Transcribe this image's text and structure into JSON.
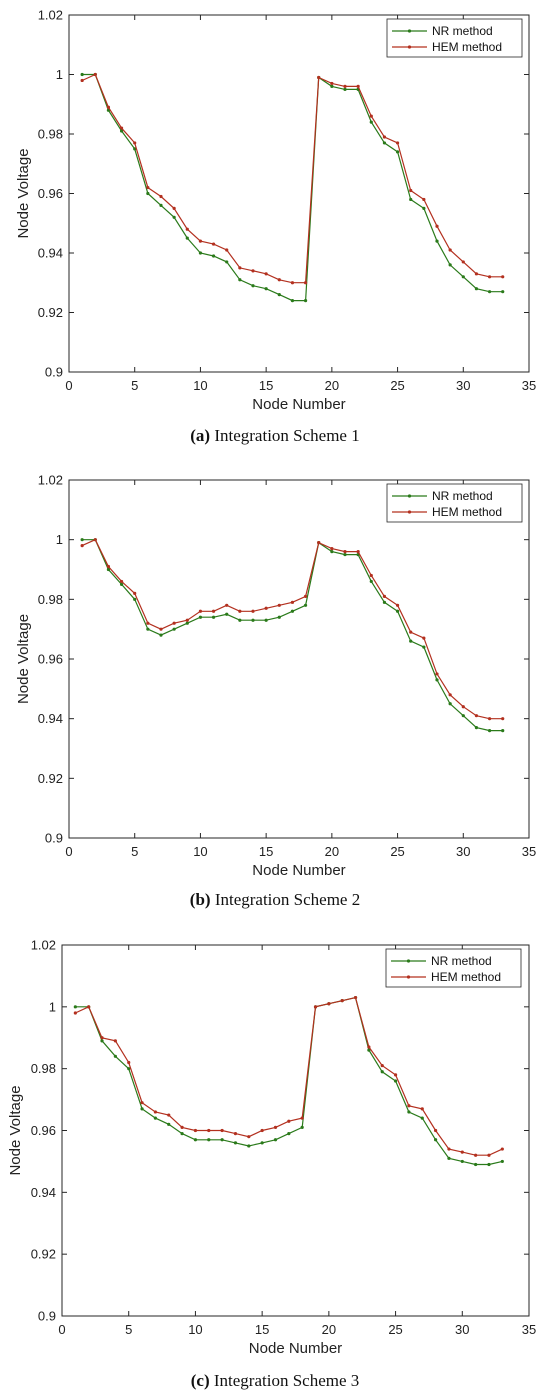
{
  "chart_data": [
    {
      "type": "line",
      "xlabel": "Node Number",
      "ylabel": "Node Voltage",
      "xlim": [
        0,
        35
      ],
      "ylim": [
        0.9,
        1.02
      ],
      "xticks": [
        "0",
        "5",
        "10",
        "15",
        "20",
        "25",
        "30",
        "35"
      ],
      "yticks": [
        "0.9",
        "0.92",
        "0.94",
        "0.96",
        "0.98",
        "1",
        "1.02"
      ],
      "legend_position": "top-right",
      "caption_label": "(a)",
      "caption_text": "Integration Scheme 1",
      "x": [
        1,
        2,
        3,
        4,
        5,
        6,
        7,
        8,
        9,
        10,
        11,
        12,
        13,
        14,
        15,
        16,
        17,
        18,
        19,
        20,
        21,
        22,
        23,
        24,
        25,
        26,
        27,
        28,
        29,
        30,
        31,
        32,
        33
      ],
      "series": [
        {
          "name": "NR method",
          "color": "#2a7a1a",
          "values": [
            1.0,
            1.0,
            0.988,
            0.981,
            0.975,
            0.96,
            0.956,
            0.952,
            0.945,
            0.94,
            0.939,
            0.937,
            0.931,
            0.929,
            0.928,
            0.926,
            0.924,
            0.924,
            0.999,
            0.996,
            0.995,
            0.995,
            0.984,
            0.977,
            0.974,
            0.958,
            0.955,
            0.944,
            0.936,
            0.932,
            0.928,
            0.927,
            0.927
          ]
        },
        {
          "name": "HEM method",
          "color": "#b3301f",
          "values": [
            0.998,
            1.0,
            0.989,
            0.982,
            0.977,
            0.962,
            0.959,
            0.955,
            0.948,
            0.944,
            0.943,
            0.941,
            0.935,
            0.934,
            0.933,
            0.931,
            0.93,
            0.93,
            0.999,
            0.997,
            0.996,
            0.996,
            0.986,
            0.979,
            0.977,
            0.961,
            0.958,
            0.949,
            0.941,
            0.937,
            0.933,
            0.932,
            0.932
          ]
        }
      ]
    },
    {
      "type": "line",
      "xlabel": "Node Number",
      "ylabel": "Node Voltage",
      "xlim": [
        0,
        35
      ],
      "ylim": [
        0.9,
        1.02
      ],
      "xticks": [
        "0",
        "5",
        "10",
        "15",
        "20",
        "25",
        "30",
        "35"
      ],
      "yticks": [
        "0.9",
        "0.92",
        "0.94",
        "0.96",
        "0.98",
        "1",
        "1.02"
      ],
      "legend_position": "top-right",
      "caption_label": "(b)",
      "caption_text": "Integration Scheme 2",
      "x": [
        1,
        2,
        3,
        4,
        5,
        6,
        7,
        8,
        9,
        10,
        11,
        12,
        13,
        14,
        15,
        16,
        17,
        18,
        19,
        20,
        21,
        22,
        23,
        24,
        25,
        26,
        27,
        28,
        29,
        30,
        31,
        32,
        33
      ],
      "series": [
        {
          "name": "NR method",
          "color": "#2a7a1a",
          "values": [
            1.0,
            1.0,
            0.99,
            0.985,
            0.98,
            0.97,
            0.968,
            0.97,
            0.972,
            0.974,
            0.974,
            0.975,
            0.973,
            0.973,
            0.973,
            0.974,
            0.976,
            0.978,
            0.999,
            0.996,
            0.995,
            0.995,
            0.986,
            0.979,
            0.976,
            0.966,
            0.964,
            0.953,
            0.945,
            0.941,
            0.937,
            0.936,
            0.936
          ]
        },
        {
          "name": "HEM method",
          "color": "#b3301f",
          "values": [
            0.998,
            1.0,
            0.991,
            0.986,
            0.982,
            0.972,
            0.97,
            0.972,
            0.973,
            0.976,
            0.976,
            0.978,
            0.976,
            0.976,
            0.977,
            0.978,
            0.979,
            0.981,
            0.999,
            0.997,
            0.996,
            0.996,
            0.988,
            0.981,
            0.978,
            0.969,
            0.967,
            0.955,
            0.948,
            0.944,
            0.941,
            0.94,
            0.94
          ]
        }
      ]
    },
    {
      "type": "line",
      "xlabel": "Node Number",
      "ylabel": "Node Voltage",
      "xlim": [
        0,
        35
      ],
      "ylim": [
        0.9,
        1.02
      ],
      "xticks": [
        "0",
        "5",
        "10",
        "15",
        "20",
        "25",
        "30",
        "35"
      ],
      "yticks": [
        "0.9",
        "0.92",
        "0.94",
        "0.96",
        "0.98",
        "1",
        "1.02"
      ],
      "legend_position": "top-right",
      "caption_label": "(c)",
      "caption_text": "Integration Scheme 3",
      "x": [
        1,
        2,
        3,
        4,
        5,
        6,
        7,
        8,
        9,
        10,
        11,
        12,
        13,
        14,
        15,
        16,
        17,
        18,
        19,
        20,
        21,
        22,
        23,
        24,
        25,
        26,
        27,
        28,
        29,
        30,
        31,
        32,
        33
      ],
      "series": [
        {
          "name": "NR method",
          "color": "#2a7a1a",
          "values": [
            1.0,
            1.0,
            0.989,
            0.984,
            0.98,
            0.967,
            0.964,
            0.962,
            0.959,
            0.957,
            0.957,
            0.957,
            0.956,
            0.955,
            0.956,
            0.957,
            0.959,
            0.961,
            1.0,
            1.001,
            1.002,
            1.003,
            0.986,
            0.979,
            0.976,
            0.966,
            0.964,
            0.957,
            0.951,
            0.95,
            0.949,
            0.949,
            0.95
          ]
        },
        {
          "name": "HEM method",
          "color": "#b3301f",
          "values": [
            0.998,
            1.0,
            0.99,
            0.989,
            0.982,
            0.969,
            0.966,
            0.965,
            0.961,
            0.96,
            0.96,
            0.96,
            0.959,
            0.958,
            0.96,
            0.961,
            0.963,
            0.964,
            1.0,
            1.001,
            1.002,
            1.003,
            0.987,
            0.981,
            0.978,
            0.968,
            0.967,
            0.96,
            0.954,
            0.953,
            0.952,
            0.952,
            0.954
          ]
        }
      ]
    }
  ]
}
